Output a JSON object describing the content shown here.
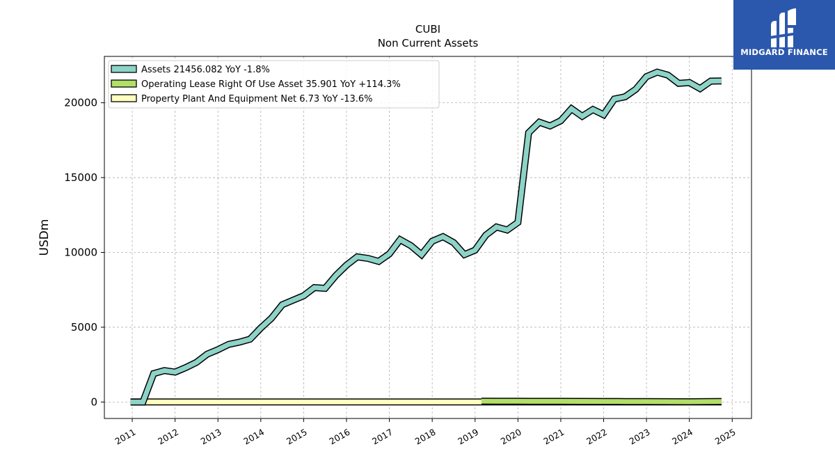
{
  "chart_data": {
    "type": "line",
    "title": "CUBI",
    "subtitle": "Non Current  Assets",
    "ylabel": "USDm",
    "xlabel": "",
    "xlim": [
      2010.35,
      2025.45
    ],
    "ylim": [
      -1100,
      23100
    ],
    "yticks": [
      0,
      5000,
      10000,
      15000,
      20000
    ],
    "ytick_labels": [
      "0",
      "5000",
      "10000",
      "15000",
      "20000"
    ],
    "xticks": [
      2011,
      2012,
      2013,
      2014,
      2015,
      2016,
      2017,
      2018,
      2019,
      2020,
      2021,
      2022,
      2023,
      2024,
      2025
    ],
    "xtick_labels": [
      "2011",
      "2012",
      "2013",
      "2014",
      "2015",
      "2016",
      "2017",
      "2018",
      "2019",
      "2020",
      "2021",
      "2022",
      "2023",
      "2024",
      "2025"
    ],
    "grid": true,
    "legend_position": "top-left",
    "series": [
      {
        "name": "Assets  21456.082 YoY -1.8%",
        "color": "#8dd3c7",
        "x": [
          2010.96,
          2011.25,
          2011.5,
          2011.75,
          2012.0,
          2012.25,
          2012.5,
          2012.75,
          2013.0,
          2013.25,
          2013.5,
          2013.75,
          2014.0,
          2014.25,
          2014.5,
          2014.75,
          2015.0,
          2015.25,
          2015.5,
          2015.75,
          2016.0,
          2016.25,
          2016.5,
          2016.75,
          2017.0,
          2017.25,
          2017.5,
          2017.75,
          2018.0,
          2018.25,
          2018.5,
          2018.75,
          2019.0,
          2019.25,
          2019.5,
          2019.75,
          2020.0,
          2020.25,
          2020.5,
          2020.75,
          2021.0,
          2021.25,
          2021.5,
          2021.75,
          2022.0,
          2022.25,
          2022.5,
          2022.75,
          2023.0,
          2023.25,
          2023.5,
          2023.75,
          2024.0,
          2024.25,
          2024.5,
          2024.75
        ],
        "y": [
          0,
          0,
          1900,
          2100,
          2000,
          2300,
          2650,
          3200,
          3500,
          3850,
          4000,
          4200,
          4950,
          5600,
          6500,
          6800,
          7100,
          7650,
          7600,
          8450,
          9150,
          9700,
          9600,
          9400,
          9900,
          10850,
          10450,
          9850,
          10750,
          11050,
          10650,
          9850,
          10150,
          11150,
          11700,
          11500,
          12000,
          18000,
          18700,
          18450,
          18800,
          19600,
          19100,
          19550,
          19200,
          20250,
          20400,
          20900,
          21750,
          22050,
          21850,
          21300,
          21350,
          20950,
          21450,
          21456
        ]
      },
      {
        "name": "Operating Lease Right Of Use Asset  35.901 YoY +114.3%",
        "color": "#b3de69",
        "x": [
          2019.15,
          2019.5,
          2020.0,
          2020.5,
          2021.0,
          2021.5,
          2022.0,
          2022.5,
          2023.0,
          2023.5,
          2024.0,
          2024.5,
          2024.75
        ],
        "y": [
          60,
          55,
          50,
          45,
          45,
          40,
          35,
          30,
          25,
          20,
          18,
          30,
          35.9
        ]
      },
      {
        "name": "Property Plant And Equipment Net  6.73 YoY -13.6%",
        "color": "#ffffbf",
        "x": [
          2010.96,
          2011.5,
          2012.0,
          2013.0,
          2014.0,
          2015.0,
          2016.0,
          2017.0,
          2018.0,
          2019.0,
          2020.0,
          2021.0,
          2022.0,
          2023.0,
          2024.0,
          2024.75
        ],
        "y": [
          6,
          6,
          6,
          7,
          7,
          7,
          7,
          8,
          8,
          8,
          8,
          8,
          8,
          8,
          7.8,
          6.73
        ]
      }
    ]
  },
  "brand": {
    "name": "MIDGARD FINANCE",
    "color": "#2b58ad",
    "icon": "midgard-logo-icon"
  }
}
